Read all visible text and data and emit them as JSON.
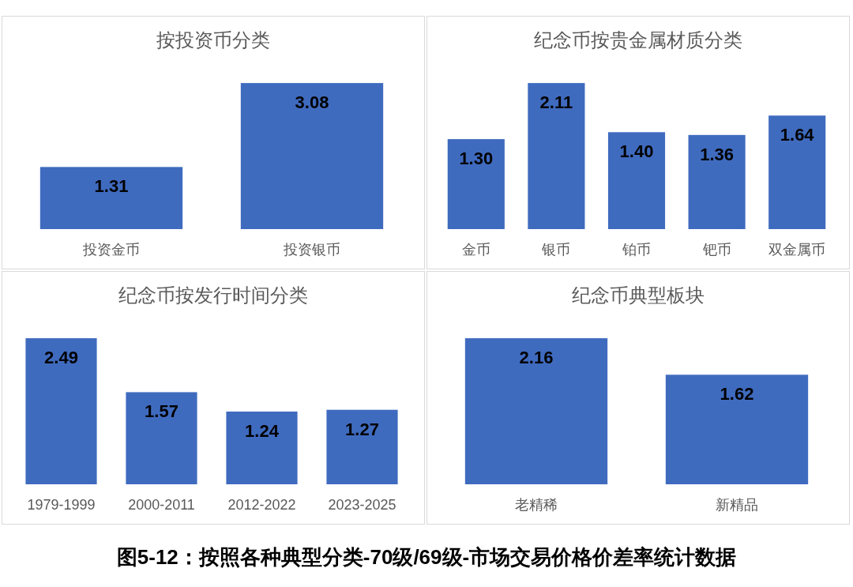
{
  "chart_data": [
    {
      "type": "bar",
      "title": "按投资币分类",
      "categories": [
        "投资金币",
        "投资银币"
      ],
      "values": [
        1.31,
        3.08
      ],
      "color": "#3f6bbf",
      "data_labels": true
    },
    {
      "type": "bar",
      "title": "纪念币按贵金属材质分类",
      "categories": [
        "金币",
        "银币",
        "铂币",
        "钯币",
        "双金属币"
      ],
      "values": [
        1.3,
        2.11,
        1.4,
        1.36,
        1.64
      ],
      "value_labels": [
        "1.30",
        "2.11",
        "1.40",
        "1.36",
        "1.64"
      ],
      "color": "#3f6bbf"
    },
    {
      "type": "bar",
      "title": "纪念币按发行时间分类",
      "categories": [
        "1979-1999",
        "2000-2011",
        "2012-2022",
        "2023-2025"
      ],
      "values": [
        2.49,
        1.57,
        1.24,
        1.27
      ],
      "color": "#3f6bbf",
      "data_labels": true
    },
    {
      "type": "bar",
      "title": "纪念币典型板块",
      "categories": [
        "老精稀",
        "新精品"
      ],
      "values": [
        2.16,
        1.62
      ],
      "color": "#3f6bbf",
      "data_labels": true
    },
    {
      "type": "other",
      "title": "图5-12：按照各种典型分类-70级/69级-市场交易价格价差率统计数据"
    }
  ]
}
